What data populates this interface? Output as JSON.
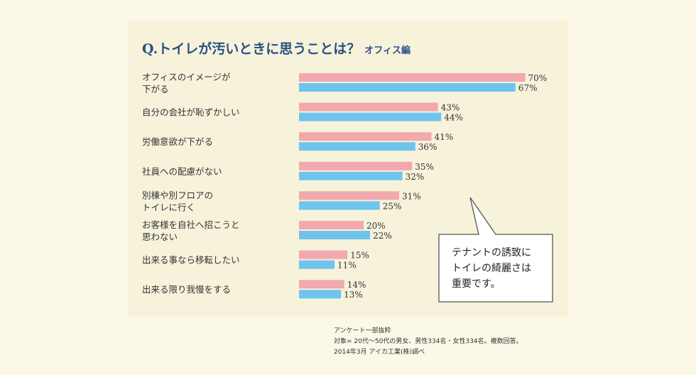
{
  "chart_data": {
    "type": "bar",
    "orientation": "horizontal",
    "title": "Q.トイレが汚いときに思うことは？",
    "subtitle": "オフィス編",
    "categories": [
      [
        "オフィスのイメージが",
        "下がる"
      ],
      [
        "自分の会社が恥ずかしい"
      ],
      [
        "労働意欲が下がる"
      ],
      [
        "社員への配慮がない"
      ],
      [
        "別棟や別フロアの",
        "トイレに行く"
      ],
      [
        "お客様を自社へ招こうと",
        "思わない"
      ],
      [
        "出来る事なら移転したい"
      ],
      [
        "出来る限り我慢をする"
      ]
    ],
    "series": [
      {
        "values": [
          70,
          43,
          41,
          35,
          31,
          20,
          15,
          14
        ],
        "color": "#f1a9ae"
      },
      {
        "values": [
          67,
          44,
          36,
          32,
          25,
          22,
          11,
          13
        ],
        "color": "#6fc4ee"
      }
    ],
    "unit": "%",
    "xlim": [
      0,
      100
    ],
    "grid": false,
    "legend": "none",
    "callout": [
      "テナントの誘致に",
      "トイレの綺麗さは",
      "重要です。"
    ],
    "notes": [
      "アンケート一部抜粋",
      "対象= 20代〜50代の男女、男性334名・女性334名。複数回答。",
      "2014年3月 アイカ工業(株)調べ"
    ]
  }
}
